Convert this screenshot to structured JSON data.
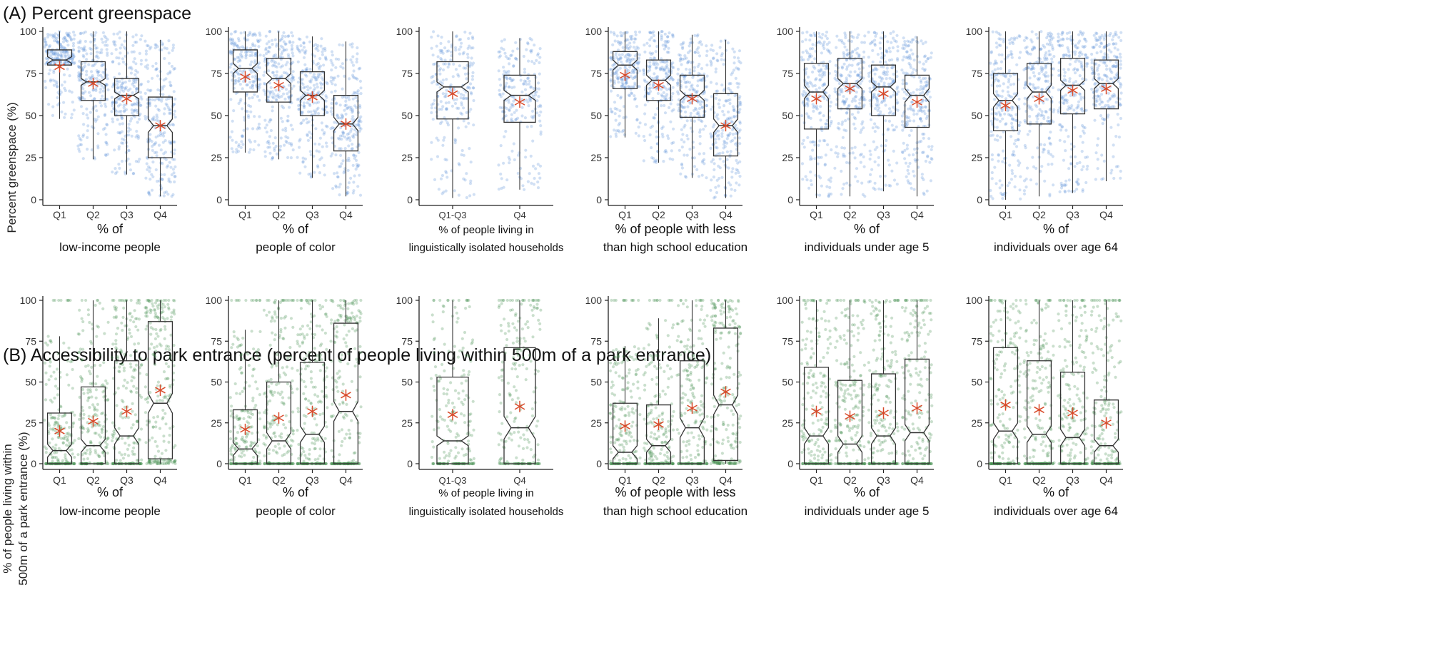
{
  "panels": [
    {
      "id": "A",
      "title": "(A) Percent greenspace",
      "ylabel": "Percent greenspace (%)",
      "color": "#5b8fd6",
      "ylim": [
        0,
        100
      ],
      "yticks": [
        0,
        25,
        50,
        75,
        100
      ],
      "charts": [
        {
          "xlabel1": "% of",
          "xlabel2": "low-income people",
          "groups": [
            {
              "label": "Q1",
              "q1": 80,
              "median": 83,
              "q3": 89,
              "notch_lo": 81,
              "notch_hi": 85,
              "wlo": 48,
              "whi": 100,
              "mean": 79
            },
            {
              "label": "Q2",
              "q1": 59,
              "median": 70,
              "q3": 82,
              "notch_lo": 68,
              "notch_hi": 72,
              "wlo": 24,
              "whi": 100,
              "mean": 69
            },
            {
              "label": "Q3",
              "q1": 50,
              "median": 62,
              "q3": 72,
              "notch_lo": 60,
              "notch_hi": 64,
              "wlo": 15,
              "whi": 100,
              "mean": 60
            },
            {
              "label": "Q4",
              "q1": 25,
              "median": 44,
              "q3": 61,
              "notch_lo": 40,
              "notch_hi": 48,
              "wlo": 2,
              "whi": 95,
              "mean": 44
            }
          ]
        },
        {
          "xlabel1": "% of",
          "xlabel2": "people of color",
          "groups": [
            {
              "label": "Q1",
              "q1": 64,
              "median": 78,
              "q3": 89,
              "notch_lo": 75,
              "notch_hi": 81,
              "wlo": 28,
              "whi": 100,
              "mean": 73
            },
            {
              "label": "Q2",
              "q1": 58,
              "median": 72,
              "q3": 84,
              "notch_lo": 69,
              "notch_hi": 75,
              "wlo": 24,
              "whi": 100,
              "mean": 68
            },
            {
              "label": "Q3",
              "q1": 50,
              "median": 62,
              "q3": 76,
              "notch_lo": 59,
              "notch_hi": 65,
              "wlo": 13,
              "whi": 97,
              "mean": 61
            },
            {
              "label": "Q4",
              "q1": 29,
              "median": 45,
              "q3": 62,
              "notch_lo": 41,
              "notch_hi": 49,
              "wlo": 2,
              "whi": 94,
              "mean": 45
            }
          ]
        },
        {
          "xlabel1": "% of people living in",
          "xlabel2": "linguistically isolated households",
          "groups": [
            {
              "label": "Q1-Q3",
              "q1": 48,
              "median": 67,
              "q3": 82,
              "notch_lo": 64,
              "notch_hi": 70,
              "wlo": 1,
              "whi": 100,
              "mean": 63
            },
            {
              "label": "Q4",
              "q1": 46,
              "median": 62,
              "q3": 74,
              "notch_lo": 59,
              "notch_hi": 65,
              "wlo": 6,
              "whi": 96,
              "mean": 58
            }
          ]
        },
        {
          "xlabel1": "% of people with less",
          "xlabel2": "than high school education",
          "groups": [
            {
              "label": "Q1",
              "q1": 66,
              "median": 80,
              "q3": 88,
              "notch_lo": 77,
              "notch_hi": 83,
              "wlo": 37,
              "whi": 100,
              "mean": 74
            },
            {
              "label": "Q2",
              "q1": 59,
              "median": 71,
              "q3": 83,
              "notch_lo": 68,
              "notch_hi": 74,
              "wlo": 22,
              "whi": 100,
              "mean": 68
            },
            {
              "label": "Q3",
              "q1": 49,
              "median": 62,
              "q3": 74,
              "notch_lo": 59,
              "notch_hi": 65,
              "wlo": 13,
              "whi": 98,
              "mean": 60
            },
            {
              "label": "Q4",
              "q1": 26,
              "median": 44,
              "q3": 63,
              "notch_lo": 40,
              "notch_hi": 48,
              "wlo": 1,
              "whi": 95,
              "mean": 44
            }
          ]
        },
        {
          "xlabel1": "% of",
          "xlabel2": "individuals under age 5",
          "groups": [
            {
              "label": "Q1",
              "q1": 42,
              "median": 64,
              "q3": 81,
              "notch_lo": 60,
              "notch_hi": 68,
              "wlo": 1,
              "whi": 100,
              "mean": 60
            },
            {
              "label": "Q2",
              "q1": 54,
              "median": 69,
              "q3": 84,
              "notch_lo": 66,
              "notch_hi": 72,
              "wlo": 2,
              "whi": 100,
              "mean": 66
            },
            {
              "label": "Q3",
              "q1": 50,
              "median": 67,
              "q3": 80,
              "notch_lo": 64,
              "notch_hi": 70,
              "wlo": 5,
              "whi": 100,
              "mean": 63
            },
            {
              "label": "Q4",
              "q1": 43,
              "median": 62,
              "q3": 74,
              "notch_lo": 58,
              "notch_hi": 66,
              "wlo": 2,
              "whi": 97,
              "mean": 58
            }
          ]
        },
        {
          "xlabel1": "% of",
          "xlabel2": "individuals over age 64",
          "groups": [
            {
              "label": "Q1",
              "q1": 41,
              "median": 59,
              "q3": 75,
              "notch_lo": 55,
              "notch_hi": 63,
              "wlo": 0,
              "whi": 100,
              "mean": 56
            },
            {
              "label": "Q2",
              "q1": 45,
              "median": 64,
              "q3": 81,
              "notch_lo": 60,
              "notch_hi": 68,
              "wlo": 2,
              "whi": 100,
              "mean": 60
            },
            {
              "label": "Q3",
              "q1": 51,
              "median": 68,
              "q3": 84,
              "notch_lo": 65,
              "notch_hi": 71,
              "wlo": 4,
              "whi": 100,
              "mean": 65
            },
            {
              "label": "Q4",
              "q1": 54,
              "median": 69,
              "q3": 83,
              "notch_lo": 66,
              "notch_hi": 72,
              "wlo": 11,
              "whi": 100,
              "mean": 66
            }
          ]
        }
      ]
    },
    {
      "id": "B",
      "title": "(B) Accessibility to park entrance (percent of people living within 500m of a park entrance)",
      "ylabel1": "% of people living within",
      "ylabel2": "500m of a park entrance (%)",
      "color": "#3f8c4c",
      "ylim": [
        0,
        100
      ],
      "yticks": [
        0,
        25,
        50,
        75,
        100
      ],
      "charts": [
        {
          "xlabel1": "% of",
          "xlabel2": "low-income people",
          "groups": [
            {
              "label": "Q1",
              "q1": 0,
              "median": 8,
              "q3": 31,
              "notch_lo": 4,
              "notch_hi": 12,
              "wlo": 0,
              "whi": 78,
              "mean": 20
            },
            {
              "label": "Q2",
              "q1": 0,
              "median": 11,
              "q3": 47,
              "notch_lo": 7,
              "notch_hi": 15,
              "wlo": 0,
              "whi": 100,
              "mean": 26
            },
            {
              "label": "Q3",
              "q1": 0,
              "median": 17,
              "q3": 63,
              "notch_lo": 12,
              "notch_hi": 22,
              "wlo": 0,
              "whi": 100,
              "mean": 32
            },
            {
              "label": "Q4",
              "q1": 3,
              "median": 37,
              "q3": 87,
              "notch_lo": 31,
              "notch_hi": 43,
              "wlo": 0,
              "whi": 100,
              "mean": 45
            }
          ]
        },
        {
          "xlabel1": "% of",
          "xlabel2": "people of color",
          "groups": [
            {
              "label": "Q1",
              "q1": 0,
              "median": 9,
              "q3": 33,
              "notch_lo": 5,
              "notch_hi": 13,
              "wlo": 0,
              "whi": 82,
              "mean": 21
            },
            {
              "label": "Q2",
              "q1": 0,
              "median": 14,
              "q3": 50,
              "notch_lo": 9,
              "notch_hi": 19,
              "wlo": 0,
              "whi": 100,
              "mean": 28
            },
            {
              "label": "Q3",
              "q1": 0,
              "median": 18,
              "q3": 62,
              "notch_lo": 13,
              "notch_hi": 23,
              "wlo": 0,
              "whi": 100,
              "mean": 32
            },
            {
              "label": "Q4",
              "q1": 0,
              "median": 32,
              "q3": 86,
              "notch_lo": 26,
              "notch_hi": 38,
              "wlo": 0,
              "whi": 100,
              "mean": 42
            }
          ]
        },
        {
          "xlabel1": "% of people living in",
          "xlabel2": "linguistically isolated households",
          "groups": [
            {
              "label": "Q1-Q3",
              "q1": 0,
              "median": 14,
              "q3": 53,
              "notch_lo": 11,
              "notch_hi": 17,
              "wlo": 0,
              "whi": 100,
              "mean": 30
            },
            {
              "label": "Q4",
              "q1": 0,
              "median": 22,
              "q3": 71,
              "notch_lo": 15,
              "notch_hi": 29,
              "wlo": 0,
              "whi": 100,
              "mean": 35
            }
          ]
        },
        {
          "xlabel1": "% of people with less",
          "xlabel2": "than high school education",
          "groups": [
            {
              "label": "Q1",
              "q1": 0,
              "median": 7,
              "q3": 37,
              "notch_lo": 3,
              "notch_hi": 11,
              "wlo": 0,
              "whi": 72,
              "mean": 23
            },
            {
              "label": "Q2",
              "q1": 0,
              "median": 11,
              "q3": 36,
              "notch_lo": 7,
              "notch_hi": 15,
              "wlo": 0,
              "whi": 89,
              "mean": 24
            },
            {
              "label": "Q3",
              "q1": 0,
              "median": 22,
              "q3": 63,
              "notch_lo": 16,
              "notch_hi": 28,
              "wlo": 0,
              "whi": 100,
              "mean": 34
            },
            {
              "label": "Q4",
              "q1": 2,
              "median": 36,
              "q3": 83,
              "notch_lo": 30,
              "notch_hi": 42,
              "wlo": 0,
              "whi": 100,
              "mean": 44
            }
          ]
        },
        {
          "xlabel1": "% of",
          "xlabel2": "individuals under age 5",
          "groups": [
            {
              "label": "Q1",
              "q1": 0,
              "median": 17,
              "q3": 59,
              "notch_lo": 12,
              "notch_hi": 22,
              "wlo": 0,
              "whi": 100,
              "mean": 32
            },
            {
              "label": "Q2",
              "q1": 0,
              "median": 12,
              "q3": 51,
              "notch_lo": 7,
              "notch_hi": 17,
              "wlo": 0,
              "whi": 100,
              "mean": 29
            },
            {
              "label": "Q3",
              "q1": 0,
              "median": 17,
              "q3": 55,
              "notch_lo": 12,
              "notch_hi": 22,
              "wlo": 0,
              "whi": 100,
              "mean": 31
            },
            {
              "label": "Q4",
              "q1": 0,
              "median": 19,
              "q3": 64,
              "notch_lo": 14,
              "notch_hi": 24,
              "wlo": 0,
              "whi": 100,
              "mean": 34
            }
          ]
        },
        {
          "xlabel1": "% of",
          "xlabel2": "individuals over age 64",
          "groups": [
            {
              "label": "Q1",
              "q1": 0,
              "median": 20,
              "q3": 71,
              "notch_lo": 15,
              "notch_hi": 25,
              "wlo": 0,
              "whi": 100,
              "mean": 36
            },
            {
              "label": "Q2",
              "q1": 0,
              "median": 18,
              "q3": 63,
              "notch_lo": 13,
              "notch_hi": 23,
              "wlo": 0,
              "whi": 100,
              "mean": 33
            },
            {
              "label": "Q3",
              "q1": 0,
              "median": 16,
              "q3": 56,
              "notch_lo": 11,
              "notch_hi": 21,
              "wlo": 0,
              "whi": 100,
              "mean": 31
            },
            {
              "label": "Q4",
              "q1": 0,
              "median": 11,
              "q3": 39,
              "notch_lo": 7,
              "notch_hi": 15,
              "wlo": 0,
              "whi": 100,
              "mean": 25
            }
          ]
        }
      ]
    }
  ],
  "chart_data": [
    {
      "type": "box",
      "panel": "A",
      "title": "(A) Percent greenspace",
      "ylabel": "Percent greenspace (%)",
      "xlabel": "% of low-income people",
      "categories": [
        "Q1",
        "Q2",
        "Q3",
        "Q4"
      ],
      "median": [
        83,
        70,
        62,
        44
      ],
      "mean": [
        79,
        69,
        60,
        44
      ],
      "ylim": [
        0,
        100
      ]
    },
    {
      "type": "box",
      "panel": "A",
      "xlabel": "% of people of color",
      "categories": [
        "Q1",
        "Q2",
        "Q3",
        "Q4"
      ],
      "median": [
        78,
        72,
        62,
        45
      ],
      "mean": [
        73,
        68,
        61,
        45
      ],
      "ylim": [
        0,
        100
      ]
    },
    {
      "type": "box",
      "panel": "A",
      "xlabel": "% of people living in linguistically isolated households",
      "categories": [
        "Q1-Q3",
        "Q4"
      ],
      "median": [
        67,
        62
      ],
      "mean": [
        63,
        58
      ],
      "ylim": [
        0,
        100
      ]
    },
    {
      "type": "box",
      "panel": "A",
      "xlabel": "% of people with less than high school education",
      "categories": [
        "Q1",
        "Q2",
        "Q3",
        "Q4"
      ],
      "median": [
        80,
        71,
        62,
        44
      ],
      "mean": [
        74,
        68,
        60,
        44
      ],
      "ylim": [
        0,
        100
      ]
    },
    {
      "type": "box",
      "panel": "A",
      "xlabel": "% of individuals under age 5",
      "categories": [
        "Q1",
        "Q2",
        "Q3",
        "Q4"
      ],
      "median": [
        64,
        69,
        67,
        62
      ],
      "mean": [
        60,
        66,
        63,
        58
      ],
      "ylim": [
        0,
        100
      ]
    },
    {
      "type": "box",
      "panel": "A",
      "xlabel": "% of individuals over age 64",
      "categories": [
        "Q1",
        "Q2",
        "Q3",
        "Q4"
      ],
      "median": [
        59,
        64,
        68,
        69
      ],
      "mean": [
        56,
        60,
        65,
        66
      ],
      "ylim": [
        0,
        100
      ]
    },
    {
      "type": "box",
      "panel": "B",
      "title": "(B) Accessibility to park entrance (percent of people living within 500m of a park entrance)",
      "ylabel": "% of people living within 500m of a park entrance (%)",
      "xlabel": "% of low-income people",
      "categories": [
        "Q1",
        "Q2",
        "Q3",
        "Q4"
      ],
      "median": [
        8,
        11,
        17,
        37
      ],
      "mean": [
        20,
        26,
        32,
        45
      ],
      "ylim": [
        0,
        100
      ]
    },
    {
      "type": "box",
      "panel": "B",
      "xlabel": "% of people of color",
      "categories": [
        "Q1",
        "Q2",
        "Q3",
        "Q4"
      ],
      "median": [
        9,
        14,
        18,
        32
      ],
      "mean": [
        21,
        28,
        32,
        42
      ],
      "ylim": [
        0,
        100
      ]
    },
    {
      "type": "box",
      "panel": "B",
      "xlabel": "% of people living in linguistically isolated households",
      "categories": [
        "Q1-Q3",
        "Q4"
      ],
      "median": [
        14,
        22
      ],
      "mean": [
        30,
        35
      ],
      "ylim": [
        0,
        100
      ]
    },
    {
      "type": "box",
      "panel": "B",
      "xlabel": "% of people with less than high school education",
      "categories": [
        "Q1",
        "Q2",
        "Q3",
        "Q4"
      ],
      "median": [
        7,
        11,
        22,
        36
      ],
      "mean": [
        23,
        24,
        34,
        44
      ],
      "ylim": [
        0,
        100
      ]
    },
    {
      "type": "box",
      "panel": "B",
      "xlabel": "% of individuals under age 5",
      "categories": [
        "Q1",
        "Q2",
        "Q3",
        "Q4"
      ],
      "median": [
        17,
        12,
        17,
        19
      ],
      "mean": [
        32,
        29,
        31,
        34
      ],
      "ylim": [
        0,
        100
      ]
    },
    {
      "type": "box",
      "panel": "B",
      "xlabel": "% of individuals over age 64",
      "categories": [
        "Q1",
        "Q2",
        "Q3",
        "Q4"
      ],
      "median": [
        20,
        18,
        16,
        11
      ],
      "mean": [
        36,
        33,
        31,
        25
      ],
      "ylim": [
        0,
        100
      ]
    }
  ]
}
